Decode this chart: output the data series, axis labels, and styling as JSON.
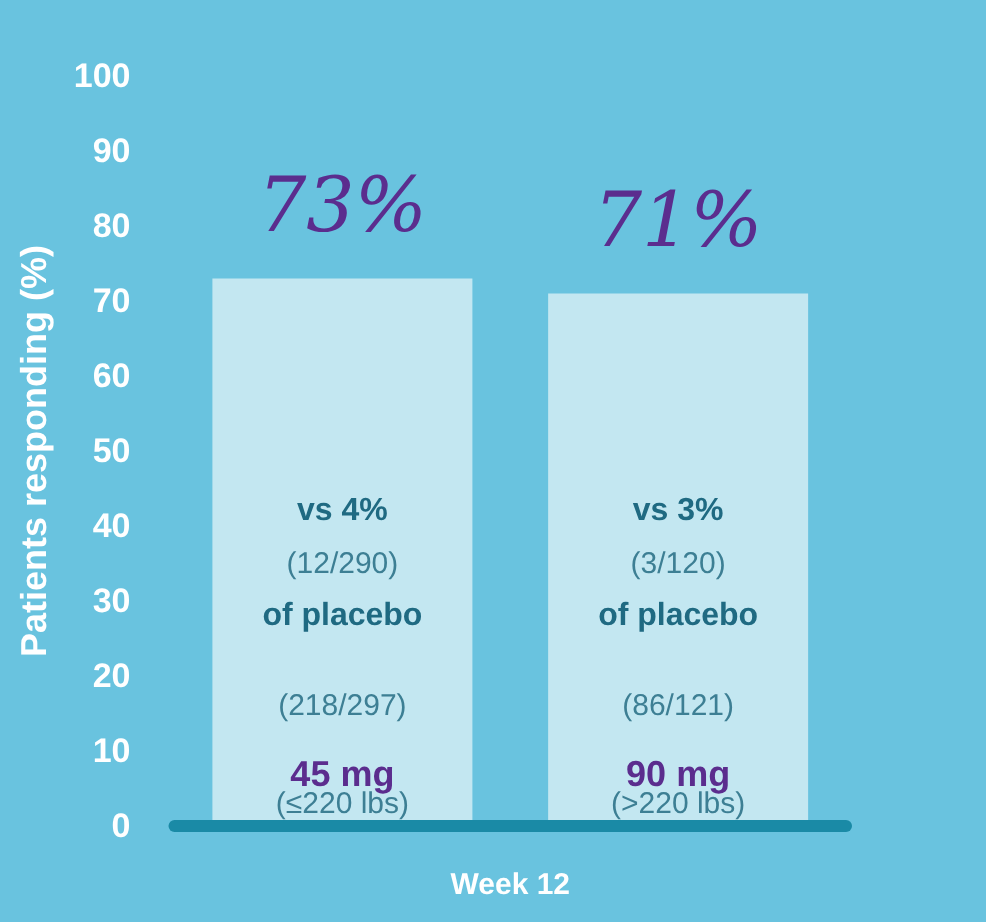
{
  "chart_data": {
    "type": "bar",
    "ylabel": "Patients responding (%)",
    "xlabel": "Week 12",
    "categories": [
      "45 mg",
      "90 mg"
    ],
    "values": [
      73,
      71
    ],
    "value_labels": [
      "73%",
      "71%"
    ],
    "color": "#c3e7f1",
    "ylim": [
      0,
      100
    ],
    "yticks": [
      0,
      10,
      20,
      30,
      40,
      50,
      60,
      70,
      80,
      90,
      100
    ],
    "annotations": [
      "vs 4%",
      "(12/290)",
      "of placebo",
      "(218/297)",
      "(≤220 lbs)",
      "vs 3%",
      "(3/120)",
      "of placebo",
      "(86/121)",
      "(>220 lbs)"
    ]
  }
}
